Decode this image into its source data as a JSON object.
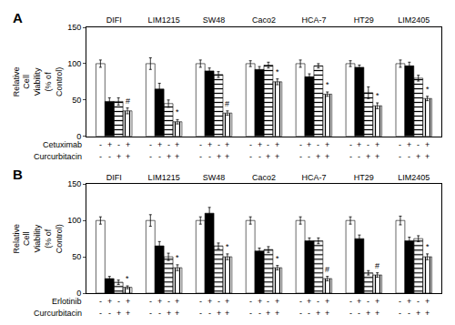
{
  "chart_data": [
    {
      "type": "bar",
      "title": "A",
      "categories": [
        "DIFI",
        "LIM1215",
        "SW48",
        "Caco2",
        "HCA-7",
        "HT29",
        "LIM2405"
      ],
      "ylabel": "Relative\nCell\nViability\n(% of\nControl)",
      "ylim": [
        0,
        150
      ],
      "yticks": [
        0,
        50,
        100,
        150
      ],
      "grid": false,
      "series": [
        {
          "color": "white",
          "values": [
            100,
            100,
            100,
            100,
            100,
            100,
            100
          ],
          "errors": [
            5,
            8,
            5,
            4,
            5,
            4,
            5
          ]
        },
        {
          "color": "black",
          "values": [
            48,
            65,
            90,
            92,
            82,
            95,
            97
          ],
          "errors": [
            5,
            8,
            4,
            4,
            4,
            3,
            5
          ]
        },
        {
          "color": "#444444",
          "marker": "horizontal",
          "values": [
            48,
            45,
            85,
            98,
            97,
            60,
            80
          ],
          "errors": [
            5,
            5,
            4,
            4,
            3,
            8,
            4
          ]
        },
        {
          "color": "white",
          "marker": "vertical",
          "values": [
            35,
            20,
            32,
            75,
            58,
            42,
            52
          ],
          "errors": [
            4,
            3,
            3,
            4,
            3,
            4,
            3
          ],
          "annotations": [
            "#",
            "*",
            "#",
            "*",
            "*",
            "*",
            "*"
          ]
        }
      ],
      "conditions": [
        {
          "label": "Cetuximab",
          "values": [
            "-",
            "+",
            "-",
            "+"
          ]
        },
        {
          "label": "Curcurbitacin",
          "values": [
            "-",
            "-",
            "+",
            "+"
          ]
        }
      ]
    },
    {
      "type": "bar",
      "title": "B",
      "categories": [
        "DIFI",
        "LIM1215",
        "SW48",
        "Caco2",
        "HCA-7",
        "HT29",
        "LIM2405"
      ],
      "ylabel": "Relative\nCell\nViability\n(% of\nControl)",
      "ylim": [
        0,
        150
      ],
      "yticks": [
        0,
        50,
        100,
        150
      ],
      "grid": false,
      "series": [
        {
          "color": "white",
          "values": [
            100,
            100,
            100,
            100,
            100,
            100,
            100
          ],
          "errors": [
            5,
            8,
            5,
            5,
            5,
            5,
            6
          ]
        },
        {
          "color": "black",
          "values": [
            20,
            65,
            110,
            58,
            72,
            75,
            72
          ],
          "errors": [
            3,
            6,
            8,
            4,
            4,
            5,
            5
          ]
        },
        {
          "color": "#444444",
          "marker": "horizontal",
          "values": [
            15,
            50,
            65,
            60,
            72,
            28,
            75
          ],
          "errors": [
            3,
            5,
            4,
            4,
            4,
            3,
            4
          ]
        },
        {
          "color": "white",
          "marker": "vertical",
          "values": [
            8,
            35,
            50,
            35,
            20,
            25,
            50
          ],
          "errors": [
            2,
            4,
            4,
            3,
            3,
            3,
            4
          ],
          "annotations": [
            "*",
            "*",
            "*",
            "*",
            "#",
            "#",
            "*"
          ]
        }
      ],
      "conditions": [
        {
          "label": "Erlotinib",
          "values": [
            "-",
            "+",
            "-",
            "+"
          ]
        },
        {
          "label": "Curcurbitacin",
          "values": [
            "-",
            "-",
            "+",
            "+"
          ]
        }
      ]
    }
  ]
}
